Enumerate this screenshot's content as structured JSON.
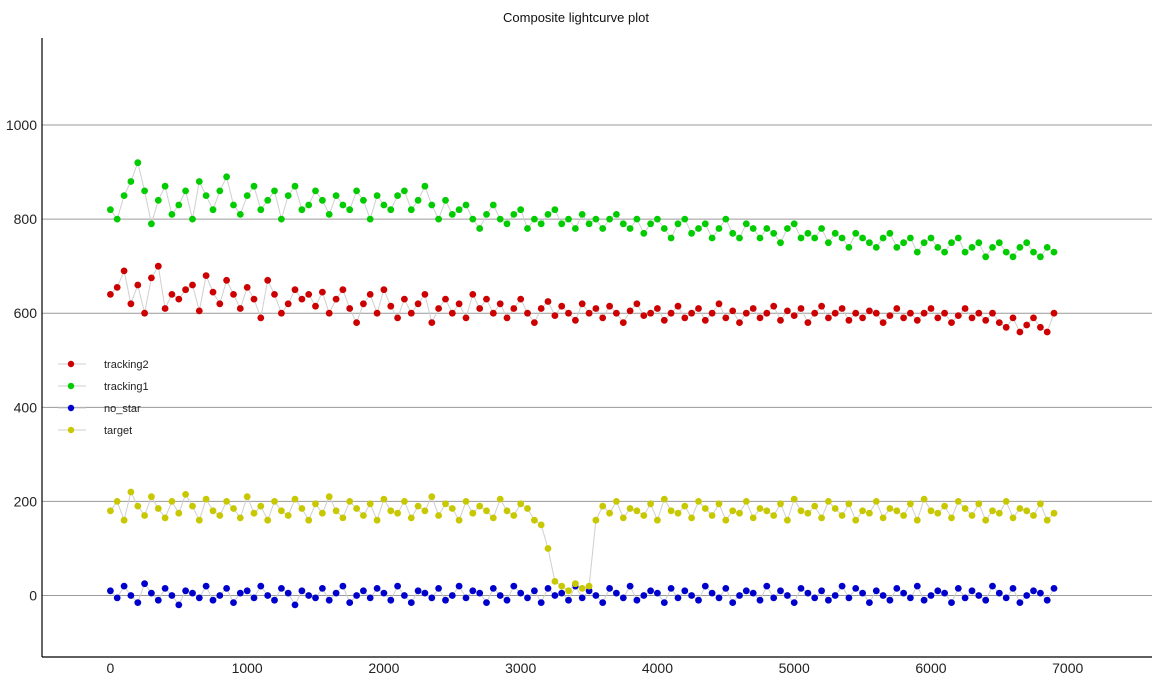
{
  "chart_data": {
    "type": "line",
    "title": "Composite lightcurve plot",
    "xlabel": "",
    "ylabel": "",
    "xlim": [
      -500,
      7600
    ],
    "ylim": [
      -135,
      1175
    ],
    "x_ticks": [
      0,
      1000,
      2000,
      3000,
      4000,
      5000,
      6000,
      7000
    ],
    "y_ticks": [
      0,
      200,
      400,
      600,
      800,
      1000
    ],
    "grid": "horizontal",
    "legend_position": "left",
    "x_range": [
      0,
      6900
    ],
    "series": [
      {
        "name": "tracking2",
        "color": "#cc0000",
        "marker": "circle",
        "x_step": 50,
        "values": [
          640,
          655,
          690,
          620,
          660,
          600,
          675,
          700,
          610,
          640,
          630,
          650,
          660,
          605,
          680,
          645,
          620,
          670,
          640,
          610,
          655,
          630,
          590,
          670,
          640,
          600,
          620,
          650,
          630,
          640,
          615,
          645,
          600,
          630,
          650,
          610,
          580,
          620,
          640,
          600,
          650,
          615,
          590,
          630,
          600,
          620,
          640,
          580,
          610,
          630,
          600,
          620,
          590,
          640,
          610,
          630,
          600,
          620,
          590,
          610,
          630,
          600,
          580,
          610,
          625,
          595,
          615,
          600,
          585,
          620,
          600,
          610,
          590,
          615,
          600,
          580,
          605,
          620,
          595,
          600,
          610,
          585,
          600,
          615,
          590,
          600,
          610,
          585,
          600,
          620,
          590,
          605,
          580,
          600,
          610,
          590,
          600,
          615,
          585,
          605,
          595,
          610,
          580,
          600,
          615,
          590,
          600,
          610,
          585,
          600,
          590,
          605,
          600,
          580,
          595,
          610,
          590,
          600,
          585,
          600,
          610,
          590,
          600,
          580,
          595,
          610,
          590,
          600,
          585,
          600,
          580,
          570,
          590,
          560,
          575,
          590,
          570,
          560,
          600
        ]
      },
      {
        "name": "tracking1",
        "color": "#00cc00",
        "marker": "circle",
        "x_step": 50,
        "values": [
          820,
          800,
          850,
          880,
          920,
          860,
          790,
          840,
          870,
          810,
          830,
          860,
          800,
          880,
          850,
          820,
          860,
          890,
          830,
          810,
          850,
          870,
          820,
          840,
          860,
          800,
          850,
          870,
          820,
          830,
          860,
          840,
          810,
          850,
          830,
          820,
          860,
          840,
          800,
          850,
          830,
          820,
          850,
          860,
          820,
          840,
          870,
          830,
          800,
          840,
          810,
          820,
          830,
          800,
          780,
          810,
          830,
          800,
          790,
          810,
          820,
          780,
          800,
          790,
          810,
          820,
          790,
          800,
          780,
          810,
          790,
          800,
          780,
          800,
          810,
          790,
          780,
          800,
          770,
          790,
          800,
          780,
          760,
          790,
          800,
          770,
          780,
          790,
          760,
          780,
          800,
          770,
          760,
          790,
          780,
          760,
          780,
          770,
          750,
          780,
          790,
          760,
          770,
          760,
          780,
          750,
          770,
          760,
          740,
          770,
          760,
          750,
          740,
          760,
          770,
          740,
          750,
          760,
          730,
          750,
          760,
          740,
          730,
          750,
          760,
          730,
          740,
          750,
          720,
          740,
          750,
          730,
          720,
          740,
          750,
          730,
          720,
          740,
          730
        ]
      },
      {
        "name": "no_star",
        "color": "#0000cc",
        "marker": "circle",
        "x_step": 50,
        "values": [
          10,
          -5,
          20,
          0,
          -15,
          25,
          5,
          -10,
          15,
          0,
          -20,
          10,
          5,
          -5,
          20,
          -10,
          0,
          15,
          -15,
          5,
          10,
          -5,
          20,
          0,
          -10,
          15,
          5,
          -20,
          10,
          0,
          -5,
          15,
          -10,
          5,
          20,
          -15,
          0,
          10,
          -5,
          15,
          5,
          -10,
          20,
          0,
          -15,
          10,
          5,
          -5,
          15,
          -10,
          0,
          20,
          -5,
          10,
          5,
          -15,
          15,
          0,
          -10,
          20,
          5,
          -5,
          10,
          -15,
          15,
          0,
          5,
          -10,
          20,
          -5,
          10,
          0,
          -15,
          15,
          5,
          -5,
          20,
          -10,
          0,
          10,
          5,
          -15,
          15,
          -5,
          10,
          0,
          -10,
          20,
          5,
          -5,
          15,
          -15,
          0,
          10,
          5,
          -10,
          20,
          -5,
          10,
          0,
          -15,
          15,
          5,
          -5,
          10,
          -10,
          0,
          20,
          -5,
          15,
          5,
          -15,
          10,
          0,
          -10,
          15,
          5,
          -5,
          20,
          -10,
          0,
          10,
          5,
          -15,
          15,
          -5,
          10,
          0,
          -10,
          20,
          5,
          -5,
          15,
          -15,
          0,
          10,
          5,
          -10,
          15
        ]
      },
      {
        "name": "target",
        "color": "#c8c800",
        "marker": "circle",
        "x_step": 50,
        "values": [
          180,
          200,
          160,
          220,
          190,
          170,
          210,
          185,
          165,
          200,
          175,
          215,
          190,
          160,
          205,
          180,
          170,
          200,
          185,
          165,
          210,
          175,
          190,
          160,
          200,
          180,
          170,
          205,
          185,
          160,
          195,
          175,
          210,
          180,
          165,
          200,
          185,
          170,
          195,
          160,
          205,
          180,
          175,
          200,
          165,
          190,
          180,
          210,
          170,
          195,
          185,
          160,
          200,
          175,
          190,
          180,
          165,
          205,
          180,
          170,
          195,
          185,
          160,
          150,
          100,
          30,
          20,
          10,
          25,
          15,
          20,
          160,
          190,
          175,
          200,
          165,
          185,
          180,
          170,
          195,
          160,
          205,
          180,
          175,
          190,
          165,
          200,
          185,
          170,
          195,
          160,
          180,
          175,
          200,
          165,
          185,
          180,
          170,
          195,
          160,
          205,
          180,
          175,
          190,
          165,
          200,
          185,
          170,
          195,
          160,
          180,
          175,
          200,
          165,
          185,
          180,
          170,
          195,
          160,
          205,
          180,
          175,
          190,
          165,
          200,
          185,
          170,
          195,
          160,
          180,
          175,
          200,
          165,
          185,
          180,
          170,
          195,
          160,
          175
        ]
      }
    ]
  }
}
